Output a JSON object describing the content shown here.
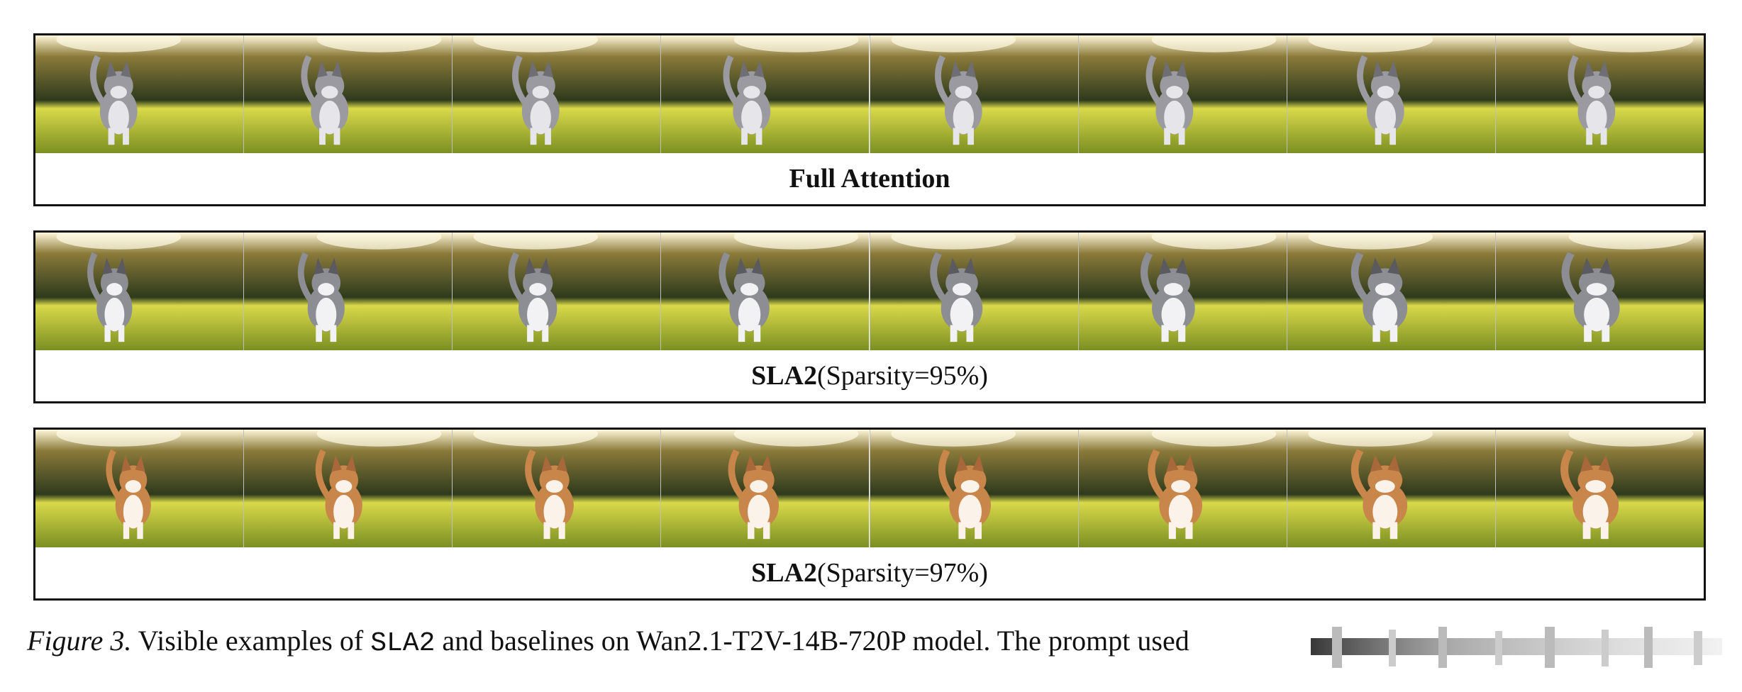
{
  "panels": [
    {
      "bold": "Full Attention",
      "rest": "",
      "cat_style": "gray-tabby"
    },
    {
      "bold": "SLA2",
      "rest": " (Sparsity=95%)",
      "cat_style": "gray-white"
    },
    {
      "bold": "SLA2",
      "rest": " (Sparsity=97%)",
      "cat_style": "orange-white"
    }
  ],
  "figure_caption": {
    "label": "Figure 3.",
    "text_1": " Visible examples of ",
    "code": "SLA2",
    "text_2": " and baselines on Wan2.1-T2V-14B-720P model. The prompt used "
  },
  "colors": {
    "sky_glow": "#fff6d8",
    "trees": "#2e3a1c",
    "grass_light": "#d9d94a",
    "grass_dark": "#7b8f22",
    "gray_cat": "#9a9aa0",
    "orange_cat": "#c8864a"
  }
}
